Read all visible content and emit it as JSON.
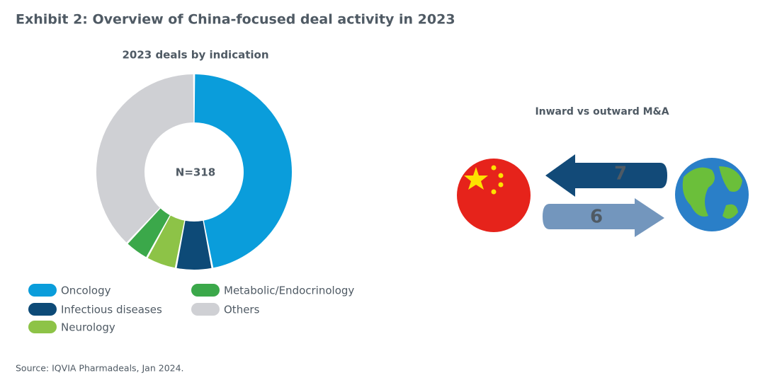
{
  "title": "Exhibit 2: Overview of China-focused deal activity in 2023",
  "source": "Source: IQVIA Pharmadeals, Jan 2024.",
  "chart_data": {
    "type": "donut",
    "title": "2023 deals by indication",
    "center_label": "N=318",
    "categories": [
      "Oncology",
      "Infectious diseases",
      "Neurology",
      "Metabolic/Endocrinology",
      "Others"
    ],
    "values": [
      47,
      6,
      5,
      4,
      38
    ],
    "colors": [
      "#0a9ddb",
      "#0d4a77",
      "#8dc347",
      "#3ba84a",
      "#cfd0d4"
    ]
  },
  "flows": {
    "title": "Inward vs outward M&A",
    "inward": 7,
    "outward": 6
  }
}
